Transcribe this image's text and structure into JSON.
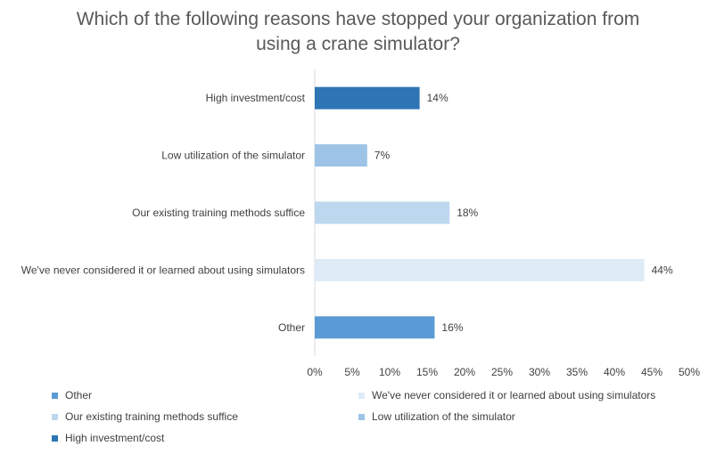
{
  "chart_data": {
    "type": "bar",
    "orientation": "horizontal",
    "title_lines": [
      "Which of the following reasons have stopped your organization from",
      "using a crane simulator?"
    ],
    "categories": [
      "High investment/cost",
      "Low utilization of the simulator",
      "Our existing training methods suffice",
      "We've never considered it or learned about using simulators",
      "Other"
    ],
    "values": [
      14,
      7,
      18,
      44,
      16
    ],
    "value_labels": [
      "14%",
      "7%",
      "18%",
      "44%",
      "16%"
    ],
    "colors": [
      "#2e75b6",
      "#9dc3e6",
      "#bdd7ee",
      "#deebf7",
      "#5b9bd5"
    ],
    "xlim": [
      0,
      50
    ],
    "xticks": [
      "0%",
      "5%",
      "10%",
      "15%",
      "20%",
      "25%",
      "30%",
      "35%",
      "40%",
      "45%",
      "50%"
    ],
    "grid": false,
    "legend_position": "bottom",
    "legend": [
      {
        "label": "Other",
        "color": "#5b9bd5"
      },
      {
        "label": "We've never considered it or learned about using simulators",
        "color": "#deebf7"
      },
      {
        "label": "Our existing training methods suffice",
        "color": "#bdd7ee"
      },
      {
        "label": "Low utilization of the simulator",
        "color": "#9dc3e6"
      },
      {
        "label": "High investment/cost",
        "color": "#2e75b6"
      }
    ]
  }
}
